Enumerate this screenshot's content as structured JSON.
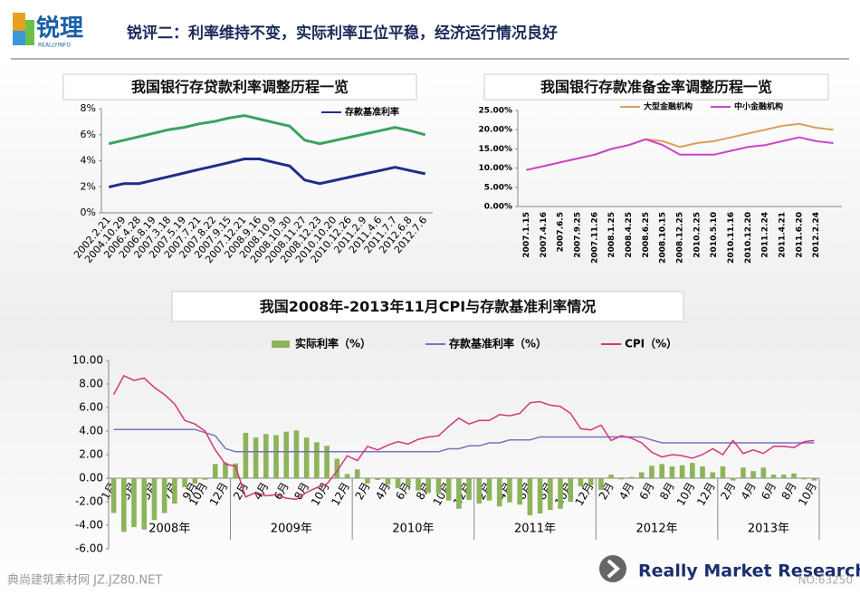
{
  "header": {
    "logo": "锐理",
    "logo_sub": "REALLYINFO",
    "title": "锐评二：利率维持不变，实际利率正位平稳，经济运行情况良好"
  },
  "footer": {
    "brand": "Really Market Research",
    "watermark": "典尚建筑素材网 JZ.JZ80.NET",
    "number": "NO:63250"
  },
  "chart_data": [
    {
      "type": "line",
      "title": "我国银行存贷款利率调整历程一览",
      "categories": [
        "2002.2.21",
        "2004.10.29",
        "2006.4.28",
        "2006.8.19",
        "2007.3.18",
        "2007.5.19",
        "2007.7.21",
        "2007.8.22",
        "2007.9.15",
        "2007.12.21",
        "2008.9.16",
        "2008.10.9",
        "2008.10.30",
        "2008.11.27",
        "2008.12.23",
        "2010.10.20",
        "2010.12.26",
        "2011.2.9",
        "2011.4.6",
        "2011.7.7",
        "2012.6.8",
        "2012.7.6"
      ],
      "series": [
        {
          "color": "#3aa35c",
          "values": [
            5.31,
            5.58,
            5.85,
            6.12,
            6.39,
            6.57,
            6.84,
            7.02,
            7.29,
            7.47,
            7.2,
            6.93,
            6.66,
            5.58,
            5.31,
            5.56,
            5.81,
            6.06,
            6.31,
            6.56,
            6.31,
            6.0
          ]
        },
        {
          "name": "存款基准利率",
          "color": "#1f2d8c",
          "values": [
            1.98,
            2.25,
            2.25,
            2.52,
            2.79,
            3.06,
            3.33,
            3.6,
            3.87,
            4.14,
            4.14,
            3.87,
            3.6,
            2.52,
            2.25,
            2.5,
            2.75,
            3.0,
            3.25,
            3.5,
            3.25,
            3.0
          ]
        }
      ],
      "ylim": [
        0,
        8
      ],
      "yticks": [
        {
          "value": 0,
          "label": "0%"
        },
        {
          "value": 2,
          "label": "2%"
        },
        {
          "value": 4,
          "label": "4%"
        },
        {
          "value": 6,
          "label": "6%"
        },
        {
          "value": 8,
          "label": "8%"
        }
      ],
      "grid": false
    },
    {
      "type": "line",
      "title": "我国银行存款准备金率调整历程一览",
      "categories": [
        "2007.1.15",
        "2007.4.16",
        "2007.6.5",
        "2007.9.25",
        "2007.11.26",
        "2008.1.25",
        "2008.4.25",
        "2008.6.25",
        "2008.10.15",
        "2008.12.25",
        "2010.2.25",
        "2010.5.10",
        "2010.11.16",
        "2010.12.20",
        "2011.2.24",
        "2011.4.21",
        "2011.6.20",
        "2012.2.24",
        null
      ],
      "series": [
        {
          "name": "大型金融机构",
          "color": "#d9a05b",
          "values": [
            9.5,
            10.5,
            11.5,
            12.5,
            13.5,
            15,
            16,
            17.5,
            17,
            15.5,
            16.5,
            17,
            18,
            19,
            20,
            21,
            21.5,
            20.5,
            20
          ]
        },
        {
          "name": "中小金融机构",
          "color": "#cc44cc",
          "values": [
            9.5,
            10.5,
            11.5,
            12.5,
            13.5,
            15,
            16,
            17.5,
            16,
            13.5,
            13.5,
            13.5,
            14.5,
            15.5,
            16,
            17,
            18,
            17,
            16.5
          ]
        }
      ],
      "ylim": [
        0,
        25
      ],
      "yticks": [
        {
          "value": 0,
          "label": "0.00%"
        },
        {
          "value": 5,
          "label": "5.00%"
        },
        {
          "value": 10,
          "label": "10.00%"
        },
        {
          "value": 15,
          "label": "15.00%"
        },
        {
          "value": 20,
          "label": "20.00%"
        },
        {
          "value": 25,
          "label": "25.00%"
        }
      ],
      "grid": false
    },
    {
      "type": "combo",
      "title": "我国2008年-2013年11月CPI与存款基准利率情况",
      "categories": [
        "1月",
        null,
        "3月",
        null,
        "5月",
        null,
        "7月",
        null,
        "9月",
        "10月",
        null,
        "12月",
        null,
        "2月",
        null,
        "4月",
        null,
        "6月",
        null,
        "8月",
        null,
        "10月",
        null,
        "12月",
        null,
        "2月",
        null,
        "4月",
        null,
        "6月",
        null,
        "8月",
        null,
        "10月",
        null,
        "12月",
        null,
        "2月",
        null,
        "4月",
        null,
        "6月",
        null,
        "8月",
        null,
        "10月",
        null,
        "12月",
        null,
        "2月",
        null,
        "4月",
        null,
        "6月",
        null,
        "8月",
        null,
        "10月",
        null,
        "12月",
        null,
        "2月",
        null,
        "4月",
        null,
        "6月",
        null,
        "8月",
        null,
        "10月"
      ],
      "year_labels": [
        "2008年",
        "2009年",
        "2010年",
        "2011年",
        "2012年",
        "2013年"
      ],
      "series": [
        {
          "name": "实际利率（%）",
          "type": "bar",
          "color": "#8db45a",
          "values": [
            -2.96,
            -4.56,
            -4.16,
            -4.36,
            -3.56,
            -2.96,
            -2.16,
            -0.76,
            -0.46,
            -0.13,
            1.2,
            1.32,
            1.25,
            3.85,
            3.45,
            3.75,
            3.65,
            3.95,
            4.05,
            3.45,
            3.05,
            2.75,
            1.65,
            0.35,
            0.75,
            -0.45,
            -0.15,
            -0.55,
            -0.85,
            -0.65,
            -1.05,
            -1.25,
            -1.35,
            -1.9,
            -2.6,
            -1.85,
            -2.15,
            -1.9,
            -2.4,
            -2.05,
            -2.25,
            -3.15,
            -3.0,
            -2.7,
            -2.6,
            -2.0,
            -0.7,
            -0.6,
            -1.0,
            0.3,
            -0.1,
            0.1,
            0.5,
            1.05,
            1.2,
            1.0,
            1.1,
            1.3,
            1.0,
            0.5,
            1.0,
            -0.2,
            0.9,
            0.6,
            0.9,
            0.3,
            0.3,
            0.4,
            -0.1,
            -0.2
          ]
        },
        {
          "name": "存款基准利率（%）",
          "type": "line",
          "color": "#7f6fbf",
          "values": [
            4.14,
            4.14,
            4.14,
            4.14,
            4.14,
            4.14,
            4.14,
            4.14,
            4.14,
            3.87,
            3.6,
            2.52,
            2.25,
            2.25,
            2.25,
            2.25,
            2.25,
            2.25,
            2.25,
            2.25,
            2.25,
            2.25,
            2.25,
            2.25,
            2.25,
            2.25,
            2.25,
            2.25,
            2.25,
            2.25,
            2.25,
            2.25,
            2.25,
            2.5,
            2.5,
            2.75,
            2.75,
            3.0,
            3.0,
            3.25,
            3.25,
            3.25,
            3.5,
            3.5,
            3.5,
            3.5,
            3.5,
            3.5,
            3.5,
            3.5,
            3.5,
            3.5,
            3.5,
            3.25,
            3.0,
            3.0,
            3.0,
            3.0,
            3.0,
            3.0,
            3.0,
            3.0,
            3.0,
            3.0,
            3.0,
            3.0,
            3.0,
            3.0,
            3.0,
            3.0
          ]
        },
        {
          "name": "CPI（%）",
          "type": "line",
          "color": "#d4357a",
          "values": [
            7.1,
            8.7,
            8.3,
            8.5,
            7.7,
            7.1,
            6.3,
            4.9,
            4.6,
            4.0,
            2.4,
            1.2,
            1.0,
            -1.6,
            -1.2,
            -1.5,
            -1.4,
            -1.7,
            -1.8,
            -1.2,
            -0.8,
            -0.5,
            0.6,
            1.9,
            1.5,
            2.7,
            2.4,
            2.8,
            3.1,
            2.9,
            3.3,
            3.5,
            3.6,
            4.4,
            5.1,
            4.6,
            4.9,
            4.9,
            5.4,
            5.3,
            5.5,
            6.4,
            6.5,
            6.2,
            6.1,
            5.5,
            4.2,
            4.1,
            4.5,
            3.2,
            3.6,
            3.4,
            3.0,
            2.2,
            1.8,
            2.0,
            1.9,
            1.7,
            2.0,
            2.5,
            2.0,
            3.2,
            2.1,
            2.4,
            2.1,
            2.7,
            2.7,
            2.6,
            3.1,
            3.2
          ]
        }
      ],
      "ylim": [
        -6,
        10
      ],
      "yticks": [
        {
          "value": -6,
          "label": "-6.00"
        },
        {
          "value": -4,
          "label": "-4.00"
        },
        {
          "value": -2,
          "label": "-2.00"
        },
        {
          "value": 0,
          "label": "0.00"
        },
        {
          "value": 2,
          "label": "2.00"
        },
        {
          "value": 4,
          "label": "4.00"
        },
        {
          "value": 6,
          "label": "6.00"
        },
        {
          "value": 8,
          "label": "8.00"
        },
        {
          "value": 10,
          "label": "10.00"
        }
      ],
      "grid": false
    }
  ]
}
